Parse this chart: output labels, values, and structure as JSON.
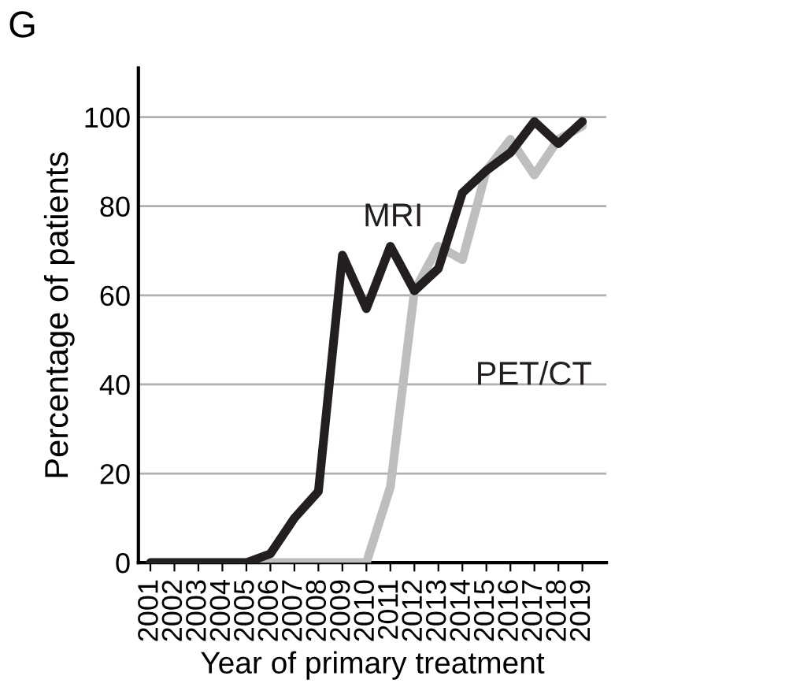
{
  "chart_data": {
    "type": "line",
    "xlabel": "Year of primary treatment",
    "ylabel": "Percentage of patients",
    "annotations": [
      "G"
    ],
    "x": [
      2001,
      2002,
      2003,
      2004,
      2005,
      2006,
      2007,
      2008,
      2009,
      2010,
      2011,
      2012,
      2013,
      2014,
      2015,
      2016,
      2017,
      2018,
      2019
    ],
    "series": [
      {
        "name": "MRI",
        "color": "#231f20",
        "values": [
          0,
          0,
          0,
          0,
          0,
          2,
          10,
          16,
          69,
          57,
          71,
          61,
          66,
          83,
          88,
          92,
          99,
          94,
          99
        ]
      },
      {
        "name": "PET/CT",
        "color": "#bcbec0",
        "values": [
          0,
          0,
          0,
          0,
          0,
          0,
          0,
          0,
          0,
          0,
          17,
          61,
          71,
          68,
          88,
          95,
          87,
          95,
          98
        ]
      }
    ],
    "xlim": [
      2000.5,
      2020
    ],
    "ylim": [
      0,
      111
    ],
    "xticks": [
      2001,
      2002,
      2003,
      2004,
      2005,
      2006,
      2007,
      2008,
      2009,
      2010,
      2011,
      2012,
      2013,
      2014,
      2015,
      2016,
      2017,
      2018,
      2019
    ],
    "yticks": [
      0,
      20,
      40,
      60,
      80,
      100
    ],
    "grid": "y",
    "legend": false,
    "marker": "none",
    "line_style": "solid"
  }
}
